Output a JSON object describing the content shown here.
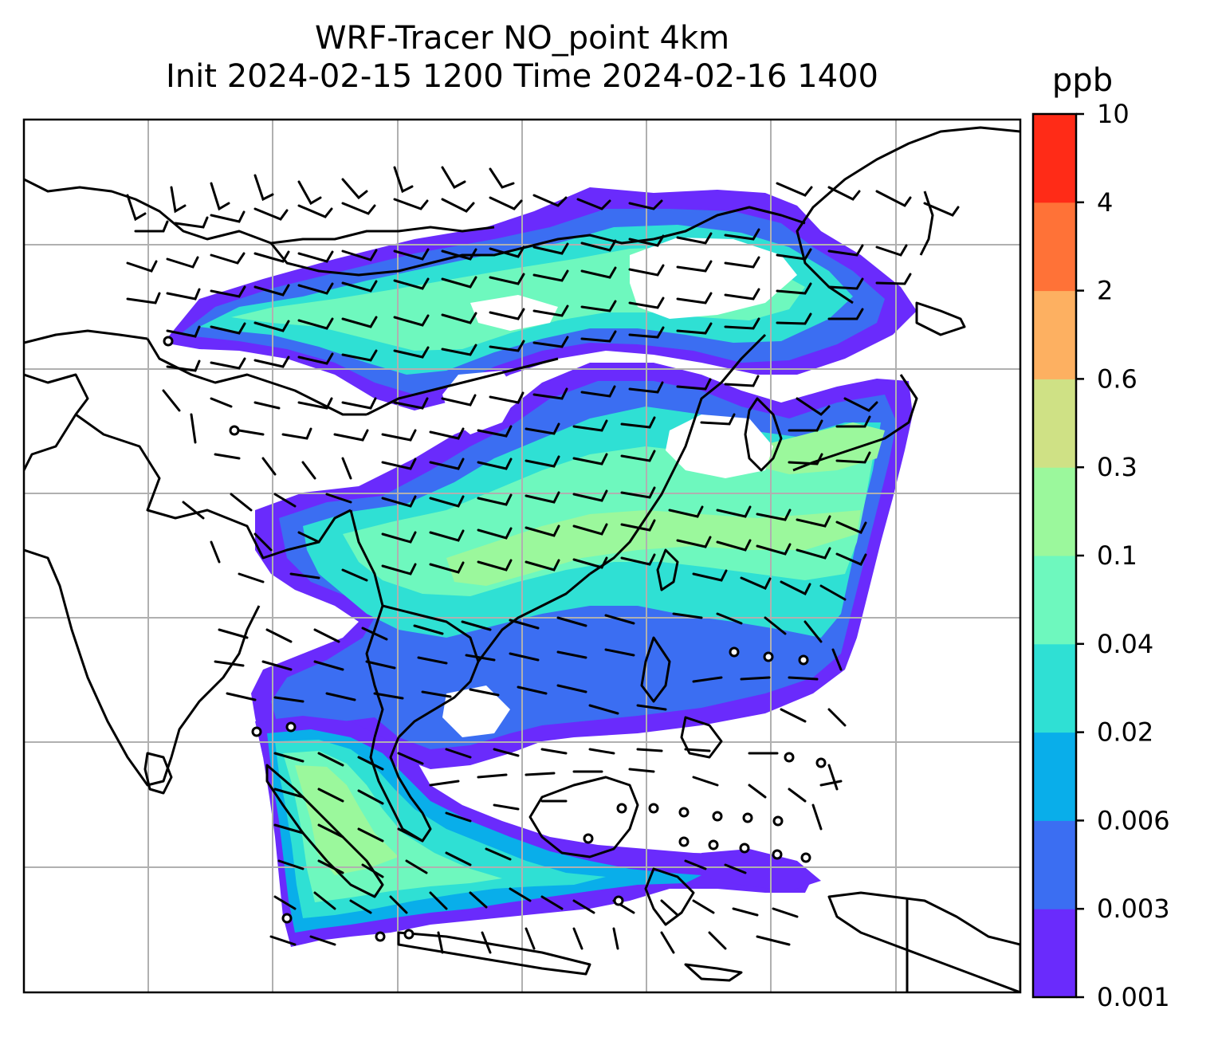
{
  "title": {
    "line1": "WRF-Tracer NO_point 4km",
    "line2": "Init 2024-02-15 1200 Time 2024-02-16 1400"
  },
  "colorbar": {
    "unit": "ppb",
    "levels": [
      "0.001",
      "0.003",
      "0.006",
      "0.02",
      "0.04",
      "0.1",
      "0.3",
      "0.6",
      "2",
      "4",
      "10"
    ],
    "colors": [
      "#6a2bfc",
      "#3b6ef2",
      "#09aeea",
      "#2fe0d4",
      "#6ef8be",
      "#9bf89c",
      "#cfe185",
      "#fdb061",
      "#ff7237",
      "#ff2b17"
    ]
  },
  "map": {
    "gridlines": "on",
    "coastlines": "black",
    "vectors": "wind barbs"
  }
}
